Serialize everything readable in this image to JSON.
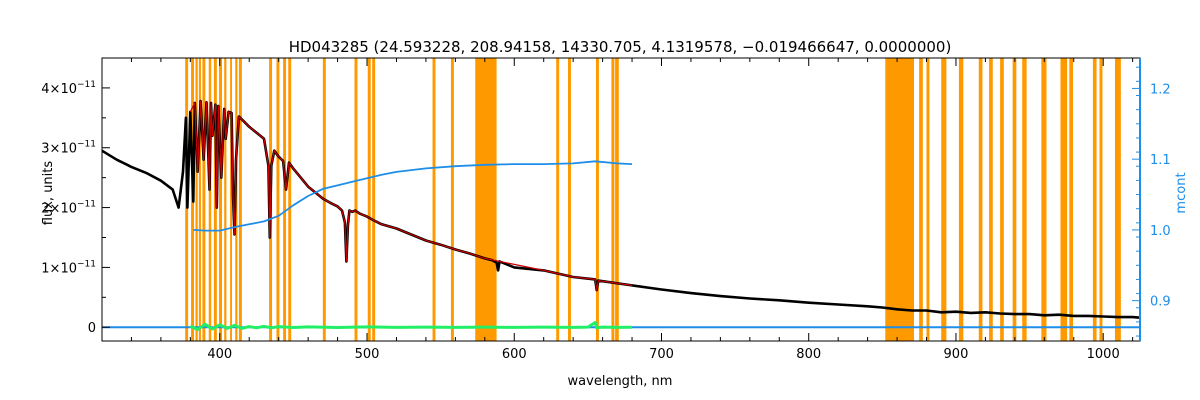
{
  "chart_data": {
    "type": "line",
    "title": "HD043285    (24.593228, 208.94158, 14330.705, 4.1319578, −0.019466647, 0.0000000)",
    "xlabel": "wavelength, nm",
    "ylabel": "flux, units",
    "y2label": "mcont",
    "xlim": [
      320,
      1025
    ],
    "ylim": [
      -2.3e-12,
      4.5e-11
    ],
    "y2lim": [
      0.843,
      1.243
    ],
    "x_ticks": [
      400,
      500,
      600,
      700,
      800,
      900,
      1000
    ],
    "y_ticks": [
      {
        "value": 0,
        "mantissa": "0",
        "exponent": ""
      },
      {
        "value": 1e-11,
        "mantissa": "1×10",
        "exponent": "−11"
      },
      {
        "value": 2e-11,
        "mantissa": "2×10",
        "exponent": "−11"
      },
      {
        "value": 3e-11,
        "mantissa": "3×10",
        "exponent": "−11"
      },
      {
        "value": 4e-11,
        "mantissa": "4×10",
        "exponent": "−11"
      }
    ],
    "y2_ticks": [
      0.9,
      1.0,
      1.1,
      1.2
    ],
    "grid": false,
    "colors": {
      "observed": "#000000",
      "model": "#cc0000",
      "mcont": "#1e8ee8",
      "residual": "#22ee66",
      "masks": "#ff9900",
      "right_axis": "#1e8ee8"
    },
    "mask_bands": [
      [
        376.5,
        378.5
      ],
      [
        380.5,
        382.5
      ],
      [
        383.5,
        385
      ],
      [
        385.8,
        387.2
      ],
      [
        388.2,
        390.2
      ],
      [
        392.5,
        394.2
      ],
      [
        396,
        398
      ],
      [
        399.5,
        401.5
      ],
      [
        403,
        404.5
      ],
      [
        407,
        408.3
      ],
      [
        410.5,
        412
      ],
      [
        413,
        415
      ],
      [
        433.5,
        435.5
      ],
      [
        438.5,
        440.5
      ],
      [
        443,
        445
      ],
      [
        446.5,
        448.5
      ],
      [
        470,
        472
      ],
      [
        491.5,
        493.5
      ],
      [
        500.5,
        502.5
      ],
      [
        503.5,
        505.5
      ],
      [
        544.5,
        546.5
      ],
      [
        557,
        559
      ],
      [
        573.5,
        588
      ],
      [
        628.5,
        630.5
      ],
      [
        636.5,
        638.5
      ],
      [
        655.5,
        657.5
      ],
      [
        666,
        668
      ],
      [
        668.5,
        671
      ],
      [
        852,
        871.5
      ],
      [
        875,
        877.5
      ],
      [
        880,
        882
      ],
      [
        890,
        893.5
      ],
      [
        902,
        905
      ],
      [
        915.5,
        918
      ],
      [
        922.5,
        925
      ],
      [
        930,
        932.5
      ],
      [
        938.5,
        941
      ],
      [
        945,
        948
      ],
      [
        958,
        961.5
      ],
      [
        971,
        975.5
      ],
      [
        977,
        979.5
      ],
      [
        993,
        995.5
      ],
      [
        997.5,
        999.5
      ],
      [
        1008,
        1012
      ]
    ],
    "series": [
      {
        "name": "",
        "role": "observed",
        "x": [
          320,
          330,
          340,
          350,
          360,
          368,
          372,
          375,
          377,
          378,
          380,
          382,
          383,
          385,
          387,
          389,
          391,
          393,
          394,
          395,
          397,
          398,
          399,
          401,
          403,
          404,
          406,
          408,
          409,
          410,
          411,
          413,
          416,
          420,
          425,
          430,
          433,
          434,
          435,
          437,
          440,
          443,
          445,
          447,
          450,
          455,
          460,
          465,
          470,
          475,
          480,
          483,
          485,
          486,
          487,
          488,
          490,
          492,
          495,
          500,
          505,
          510,
          520,
          530,
          540,
          550,
          560,
          570,
          580,
          585,
          588,
          589,
          590,
          595,
          600,
          620,
          640,
          655,
          656,
          657,
          660,
          680,
          700,
          720,
          740,
          760,
          780,
          800,
          820,
          840,
          850,
          860,
          870,
          880,
          890,
          900,
          910,
          920,
          930,
          940,
          950,
          960,
          970,
          980,
          990,
          1000,
          1010,
          1020,
          1025
        ],
        "y": [
          2.95e-11,
          2.8e-11,
          2.68e-11,
          2.58e-11,
          2.45e-11,
          2.3e-11,
          2e-11,
          2.6e-11,
          3.5e-11,
          2e-11,
          3.6e-11,
          2.1e-11,
          3.75e-11,
          2.6e-11,
          3.78e-11,
          2.8e-11,
          3.76e-11,
          2.3e-11,
          3.75e-11,
          3.2e-11,
          3.72e-11,
          2e-11,
          3.7e-11,
          2.5e-11,
          3.65e-11,
          3.15e-11,
          3.6e-11,
          3.58e-11,
          2.2e-11,
          1.55e-11,
          2.8e-11,
          3.52e-11,
          3.45e-11,
          3.35e-11,
          3.25e-11,
          3.15e-11,
          2.7e-11,
          1.5e-11,
          2.7e-11,
          2.95e-11,
          2.85e-11,
          2.78e-11,
          2.3e-11,
          2.75e-11,
          2.65e-11,
          2.5e-11,
          2.35e-11,
          2.25e-11,
          2.15e-11,
          2.08e-11,
          2.02e-11,
          1.95e-11,
          1.75e-11,
          1.1e-11,
          1.7e-11,
          1.95e-11,
          1.93e-11,
          1.95e-11,
          1.9e-11,
          1.85e-11,
          1.78e-11,
          1.72e-11,
          1.65e-11,
          1.55e-11,
          1.45e-11,
          1.38e-11,
          1.3e-11,
          1.23e-11,
          1.15e-11,
          1.12e-11,
          1.08e-11,
          9.5e-12,
          1.1e-11,
          1.05e-11,
          1e-11,
          9.5e-12,
          8.4e-12,
          8e-12,
          6.2e-12,
          7.8e-12,
          7.7e-12,
          7e-12,
          6.3e-12,
          5.7e-12,
          5.2e-12,
          4.8e-12,
          4.5e-12,
          4.1e-12,
          3.8e-12,
          3.5e-12,
          3.3e-12,
          3e-12,
          2.8e-12,
          2.8e-12,
          2.5e-12,
          2.6e-12,
          2.4e-12,
          2.5e-12,
          2.3e-12,
          2.2e-12,
          2.2e-12,
          2e-12,
          2.1e-12,
          1.9e-12,
          1.9e-12,
          1.8e-12,
          1.7e-12,
          1.7e-12,
          1.6e-12
        ]
      },
      {
        "name": "",
        "role": "model",
        "x": [
          380,
          383,
          385,
          387,
          389,
          391,
          393,
          394,
          395,
          397,
          398,
          399,
          401,
          403,
          404,
          406,
          408,
          409,
          410,
          411,
          413,
          416,
          420,
          425,
          430,
          433,
          434,
          435,
          437,
          440,
          443,
          445,
          447,
          450,
          455,
          460,
          465,
          470,
          475,
          480,
          483,
          485,
          486,
          487,
          488,
          490,
          492,
          495,
          500,
          505,
          510,
          520,
          530,
          540,
          550,
          560,
          570,
          580,
          590,
          600,
          620,
          640,
          655,
          656,
          657,
          660,
          680
        ],
        "y": [
          3.6e-11,
          3.75e-11,
          2.6e-11,
          3.78e-11,
          2.8e-11,
          3.76e-11,
          2.3e-11,
          3.75e-11,
          3.2e-11,
          3.72e-11,
          2e-11,
          3.7e-11,
          2.5e-11,
          3.65e-11,
          3.15e-11,
          3.6e-11,
          3.58e-11,
          2.2e-11,
          1.55e-11,
          2.8e-11,
          3.52e-11,
          3.45e-11,
          3.35e-11,
          3.25e-11,
          3.15e-11,
          2.7e-11,
          1.5e-11,
          2.7e-11,
          2.95e-11,
          2.85e-11,
          2.78e-11,
          2.3e-11,
          2.75e-11,
          2.65e-11,
          2.5e-11,
          2.35e-11,
          2.25e-11,
          2.15e-11,
          2.08e-11,
          2.02e-11,
          1.95e-11,
          1.75e-11,
          1.1e-11,
          1.7e-11,
          1.95e-11,
          1.93e-11,
          1.95e-11,
          1.9e-11,
          1.85e-11,
          1.78e-11,
          1.72e-11,
          1.65e-11,
          1.55e-11,
          1.45e-11,
          1.38e-11,
          1.3e-11,
          1.23e-11,
          1.15e-11,
          1.1e-11,
          1.05e-11,
          9.5e-12,
          8.4e-12,
          8e-12,
          6.2e-12,
          7.8e-12,
          7.7e-12,
          7e-12
        ]
      },
      {
        "name": "",
        "role": "mcont",
        "axis": "right",
        "x": [
          382,
          390,
          400,
          410,
          420,
          430,
          440,
          450,
          460,
          470,
          480,
          490,
          500,
          510,
          520,
          540,
          560,
          580,
          600,
          620,
          640,
          655,
          670,
          680
        ],
        "y": [
          1.0,
          0.999,
          0.999,
          1.004,
          1.008,
          1.012,
          1.02,
          1.035,
          1.048,
          1.058,
          1.063,
          1.068,
          1.073,
          1.078,
          1.082,
          1.087,
          1.09,
          1.092,
          1.093,
          1.093,
          1.094,
          1.097,
          1.094,
          1.093
        ]
      },
      {
        "name": "",
        "role": "residual",
        "x": [
          380,
          385,
          390,
          395,
          400,
          405,
          410,
          415,
          420,
          425,
          430,
          435,
          440,
          450,
          460,
          480,
          500,
          520,
          540,
          560,
          580,
          600,
          620,
          640,
          650,
          655,
          656,
          660,
          670,
          680
        ],
        "y": [
          2e-13,
          -4e-13,
          5e-13,
          -3e-13,
          4e-13,
          -2e-13,
          3e-13,
          -2e-13,
          1e-13,
          -1e-13,
          1.5e-13,
          -1e-13,
          1e-13,
          -5e-14,
          5e-14,
          -5e-14,
          5e-14,
          -3e-14,
          3e-14,
          -3e-14,
          3e-14,
          -3e-14,
          3e-14,
          -2e-14,
          2e-14,
          8e-13,
          -1e-13,
          2e-14,
          -2e-14,
          0.0
        ]
      },
      {
        "name": "",
        "role": "zero",
        "x": [
          320,
          1025
        ],
        "y": [
          0,
          0
        ]
      }
    ]
  }
}
